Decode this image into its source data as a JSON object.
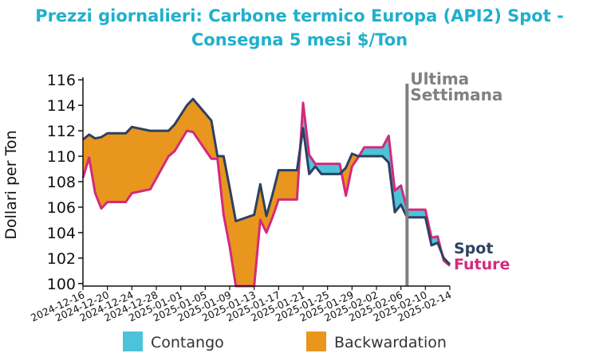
{
  "colors": {
    "title": "#1fb0cc",
    "spot": "#2d4161",
    "future": "#d42a7b",
    "contango": "#4cc3d9",
    "backwardation": "#e8961e",
    "annotation": "#808080",
    "axis": "#111111"
  },
  "chart_data": {
    "type": "area",
    "title": "Prezzi giornalieri: Carbone termico Europa (API2) Spot -",
    "title_line2": "Consegna 5 mesi $/Ton",
    "xlabel": "",
    "ylabel": "Dollari per Ton",
    "ylim": [
      99.8,
      116.2
    ],
    "yticks": [
      100,
      102,
      104,
      106,
      108,
      110,
      112,
      114,
      116
    ],
    "xlim": [
      "2024-12-16",
      "2025-02-14"
    ],
    "xticks": [
      "2024-12-16",
      "2024-12-20",
      "2024-12-24",
      "2024-12-28",
      "2025-01-01",
      "2025-01-05",
      "2025-01-09",
      "2025-01-13",
      "2025-01-17",
      "2025-01-21",
      "2025-01-25",
      "2025-01-29",
      "2025-02-02",
      "2025-02-06",
      "2025-02-10",
      "2025-02-14"
    ],
    "annotation": {
      "line1": "Ultima",
      "line2": "Settimana",
      "x": "2025-02-07"
    },
    "end_labels": {
      "spot": "Spot",
      "future": "Future"
    },
    "legend": {
      "position": "bottom",
      "items": [
        {
          "label": "Contango",
          "key": "contango"
        },
        {
          "label": "Backwardation",
          "key": "backwardation"
        }
      ]
    },
    "x": [
      "2024-12-16",
      "2024-12-17",
      "2024-12-18",
      "2024-12-19",
      "2024-12-20",
      "2024-12-23",
      "2024-12-24",
      "2024-12-27",
      "2024-12-30",
      "2024-12-31",
      "2025-01-02",
      "2025-01-03",
      "2025-01-06",
      "2025-01-07",
      "2025-01-08",
      "2025-01-09",
      "2025-01-10",
      "2025-01-13",
      "2025-01-14",
      "2025-01-15",
      "2025-01-16",
      "2025-01-17",
      "2025-01-20",
      "2025-01-21",
      "2025-01-22",
      "2025-01-23",
      "2025-01-24",
      "2025-01-27",
      "2025-01-28",
      "2025-01-29",
      "2025-01-30",
      "2025-01-31",
      "2025-02-03",
      "2025-02-04",
      "2025-02-05",
      "2025-02-06",
      "2025-02-07",
      "2025-02-10",
      "2025-02-11",
      "2025-02-12",
      "2025-02-13",
      "2025-02-14"
    ],
    "series": [
      {
        "name": "Spot",
        "key": "spot",
        "values": [
          111.3,
          111.7,
          111.4,
          111.5,
          111.8,
          111.8,
          112.3,
          112.0,
          112.0,
          112.5,
          114.0,
          114.5,
          112.8,
          110.0,
          110.0,
          107.5,
          104.9,
          105.4,
          107.8,
          105.3,
          107.0,
          108.9,
          108.9,
          112.2,
          108.6,
          109.2,
          108.6,
          108.6,
          109.1,
          110.2,
          110.0,
          110.0,
          110.0,
          109.5,
          105.6,
          106.2,
          105.2,
          105.2,
          103.0,
          103.2,
          102.0,
          101.5
        ]
      },
      {
        "name": "Future",
        "key": "future",
        "values": [
          108.3,
          109.9,
          107.1,
          105.9,
          106.4,
          106.4,
          107.1,
          107.4,
          110.0,
          110.4,
          112.0,
          111.9,
          109.8,
          109.8,
          105.4,
          102.9,
          99.8,
          99.8,
          105.0,
          104.0,
          105.2,
          106.6,
          106.6,
          114.2,
          110.1,
          109.4,
          109.4,
          109.4,
          106.9,
          109.2,
          109.9,
          110.7,
          110.7,
          111.6,
          107.3,
          107.7,
          105.8,
          105.8,
          103.6,
          103.7,
          101.8,
          101.4
        ]
      }
    ]
  }
}
